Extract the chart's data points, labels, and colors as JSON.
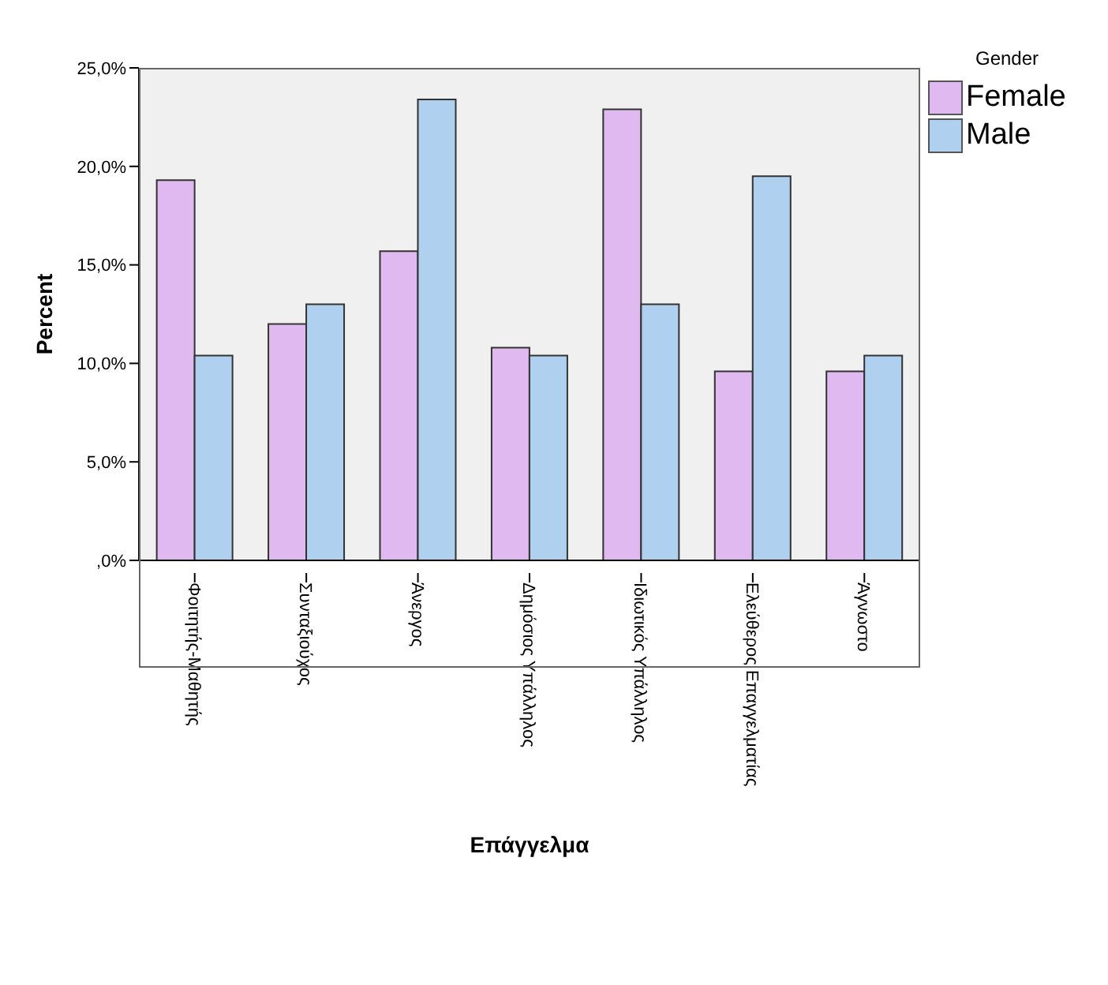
{
  "chart_data": {
    "type": "bar",
    "xlabel": "Επάγγελμα",
    "ylabel": "Percent",
    "legend_title": "Gender",
    "categories": [
      "Φοιτητής-Μαθητής",
      "Συνταξιούχος",
      "Άνεργος",
      "Δημόσιος Υπάλληλος",
      "Ιδιωτικός Υπάλληλος",
      "Ελεύθερος Επαγγελματίας",
      "Άγνωστο"
    ],
    "series": [
      {
        "name": "Female",
        "color": "#dfb9ef",
        "values": [
          19.3,
          12.0,
          15.7,
          10.8,
          22.9,
          9.6,
          9.6
        ]
      },
      {
        "name": "Male",
        "color": "#afd0ee",
        "values": [
          10.4,
          13.0,
          23.4,
          10.4,
          13.0,
          19.5,
          10.4
        ]
      }
    ],
    "ylim": [
      0,
      25
    ],
    "yticks": [
      {
        "value": 0,
        "label": ",0%"
      },
      {
        "value": 5,
        "label": "5,0%"
      },
      {
        "value": 10,
        "label": "10,0%"
      },
      {
        "value": 15,
        "label": "15,0%"
      },
      {
        "value": 20,
        "label": "20,0%"
      },
      {
        "value": 25,
        "label": "25,0%"
      }
    ],
    "legend": "top right",
    "grid": false
  }
}
